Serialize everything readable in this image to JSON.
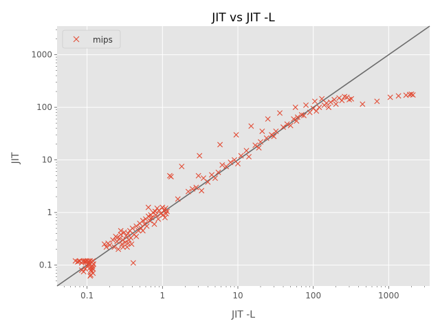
{
  "chart_data": {
    "type": "scatter",
    "title": "JIT vs JIT -L",
    "xlabel": "JIT -L",
    "ylabel": "JIT",
    "xscale": "log",
    "yscale": "log",
    "xlim": [
      0.04,
      3500
    ],
    "ylim": [
      0.04,
      3500
    ],
    "xticks": [
      0.1,
      1,
      10,
      100,
      1000
    ],
    "yticks": [
      0.1,
      1,
      10,
      100,
      1000
    ],
    "xtick_labels": [
      "0.1",
      "1",
      "10",
      "100",
      "1000"
    ],
    "ytick_labels": [
      "0.1",
      "1",
      "10",
      "100",
      "1000"
    ],
    "grid": true,
    "legend_position": "top-left",
    "reference_line": "y = x",
    "reference_line_color": "#6b6b6b",
    "plot_background": "#e5e5e5",
    "grid_color": "#ffffff",
    "series": [
      {
        "name": "mips",
        "marker": "x",
        "color": "#e24a33",
        "points": [
          [
            0.07,
            0.12
          ],
          [
            0.075,
            0.115
          ],
          [
            0.08,
            0.12
          ],
          [
            0.085,
            0.11
          ],
          [
            0.09,
            0.12
          ],
          [
            0.095,
            0.115
          ],
          [
            0.1,
            0.12
          ],
          [
            0.105,
            0.11
          ],
          [
            0.11,
            0.12
          ],
          [
            0.115,
            0.115
          ],
          [
            0.12,
            0.12
          ],
          [
            0.122,
            0.105
          ],
          [
            0.118,
            0.095
          ],
          [
            0.12,
            0.085
          ],
          [
            0.115,
            0.075
          ],
          [
            0.112,
            0.065
          ],
          [
            0.11,
            0.062
          ],
          [
            0.12,
            0.07
          ],
          [
            0.11,
            0.09
          ],
          [
            0.108,
            0.1
          ],
          [
            0.085,
            0.08
          ],
          [
            0.09,
            0.075
          ],
          [
            0.095,
            0.085
          ],
          [
            0.1,
            0.095
          ],
          [
            0.105,
            0.118
          ],
          [
            0.095,
            0.12
          ],
          [
            0.088,
            0.117
          ],
          [
            0.078,
            0.118
          ],
          [
            0.113,
            0.08
          ],
          [
            0.117,
            0.088
          ],
          [
            0.17,
            0.25
          ],
          [
            0.18,
            0.22
          ],
          [
            0.19,
            0.26
          ],
          [
            0.2,
            0.24
          ],
          [
            0.22,
            0.3
          ],
          [
            0.23,
            0.22
          ],
          [
            0.24,
            0.35
          ],
          [
            0.25,
            0.28
          ],
          [
            0.26,
            0.2
          ],
          [
            0.27,
            0.32
          ],
          [
            0.28,
            0.38
          ],
          [
            0.29,
            0.25
          ],
          [
            0.3,
            0.3
          ],
          [
            0.31,
            0.42
          ],
          [
            0.32,
            0.27
          ],
          [
            0.33,
            0.36
          ],
          [
            0.34,
            0.22
          ],
          [
            0.35,
            0.4
          ],
          [
            0.36,
            0.3
          ],
          [
            0.37,
            0.45
          ],
          [
            0.38,
            0.33
          ],
          [
            0.39,
            0.25
          ],
          [
            0.4,
            0.5
          ],
          [
            0.41,
            0.11
          ],
          [
            0.42,
            0.38
          ],
          [
            0.45,
            0.55
          ],
          [
            0.48,
            0.45
          ],
          [
            0.5,
            0.62
          ],
          [
            0.52,
            0.5
          ],
          [
            0.55,
            0.7
          ],
          [
            0.58,
            0.6
          ],
          [
            0.6,
            0.75
          ],
          [
            0.62,
            0.55
          ],
          [
            0.65,
            0.85
          ],
          [
            0.65,
            1.25
          ],
          [
            0.68,
            0.7
          ],
          [
            0.7,
            0.9
          ],
          [
            0.72,
            0.8
          ],
          [
            0.75,
            1.0
          ],
          [
            0.78,
            0.6
          ],
          [
            0.8,
            1.05
          ],
          [
            0.82,
            0.9
          ],
          [
            0.85,
            1.2
          ],
          [
            0.88,
            0.75
          ],
          [
            0.9,
            1.1
          ],
          [
            0.95,
            0.95
          ],
          [
            1.0,
            1.25
          ],
          [
            1.02,
            0.9
          ],
          [
            1.05,
            1.1
          ],
          [
            1.08,
            0.8
          ],
          [
            1.1,
            1.2
          ],
          [
            1.12,
            0.95
          ],
          [
            1.15,
            1.05
          ],
          [
            0.28,
            0.45
          ],
          [
            0.3,
            0.22
          ],
          [
            0.25,
            0.33
          ],
          [
            0.35,
            0.26
          ],
          [
            0.45,
            0.35
          ],
          [
            0.55,
            0.45
          ],
          [
            1.25,
            5.0
          ],
          [
            1.3,
            4.8
          ],
          [
            1.6,
            1.8
          ],
          [
            1.8,
            7.5
          ],
          [
            2.2,
            2.5
          ],
          [
            2.5,
            2.8
          ],
          [
            2.8,
            3.0
          ],
          [
            3.0,
            5.0
          ],
          [
            3.1,
            12.0
          ],
          [
            3.3,
            2.6
          ],
          [
            3.5,
            4.5
          ],
          [
            4.0,
            3.8
          ],
          [
            4.5,
            5.2
          ],
          [
            5.0,
            4.5
          ],
          [
            5.5,
            5.8
          ],
          [
            5.8,
            19.5
          ],
          [
            6.2,
            8.0
          ],
          [
            7.0,
            7.5
          ],
          [
            8.0,
            9.0
          ],
          [
            9.0,
            10.0
          ],
          [
            9.5,
            30.0
          ],
          [
            10.0,
            8.5
          ],
          [
            11.0,
            12.0
          ],
          [
            13.0,
            15.0
          ],
          [
            14.0,
            11.5
          ],
          [
            15.0,
            44.0
          ],
          [
            17.0,
            19.0
          ],
          [
            19.0,
            17.0
          ],
          [
            20.0,
            22.0
          ],
          [
            21.0,
            35.0
          ],
          [
            24.0,
            26.0
          ],
          [
            25.0,
            60.0
          ],
          [
            28.0,
            30.0
          ],
          [
            30.0,
            28.0
          ],
          [
            32.0,
            35.0
          ],
          [
            36.0,
            78.0
          ],
          [
            40.0,
            42.0
          ],
          [
            45.0,
            48.0
          ],
          [
            50.0,
            45.0
          ],
          [
            55.0,
            60.0
          ],
          [
            58.0,
            100.0
          ],
          [
            60.0,
            55.0
          ],
          [
            62.0,
            65.0
          ],
          [
            70.0,
            72.0
          ],
          [
            75.0,
            70.0
          ],
          [
            80.0,
            110.0
          ],
          [
            90.0,
            80.0
          ],
          [
            100.0,
            95.0
          ],
          [
            105.0,
            130.0
          ],
          [
            110.0,
            85.0
          ],
          [
            120.0,
            100.0
          ],
          [
            130.0,
            145.0
          ],
          [
            140.0,
            110.0
          ],
          [
            150.0,
            120.0
          ],
          [
            160.0,
            100.0
          ],
          [
            170.0,
            125.0
          ],
          [
            190.0,
            140.0
          ],
          [
            200.0,
            115.0
          ],
          [
            220.0,
            150.0
          ],
          [
            240.0,
            135.0
          ],
          [
            260.0,
            160.0
          ],
          [
            280.0,
            155.0
          ],
          [
            300.0,
            140.0
          ],
          [
            320.0,
            145.0
          ],
          [
            450.0,
            115.0
          ],
          [
            700.0,
            130.0
          ],
          [
            1050.0,
            155.0
          ],
          [
            1350.0,
            165.0
          ],
          [
            1700.0,
            170.0
          ],
          [
            1900.0,
            175.0
          ],
          [
            2000.0,
            178.0
          ],
          [
            2100.0,
            172.0
          ]
        ]
      }
    ]
  }
}
